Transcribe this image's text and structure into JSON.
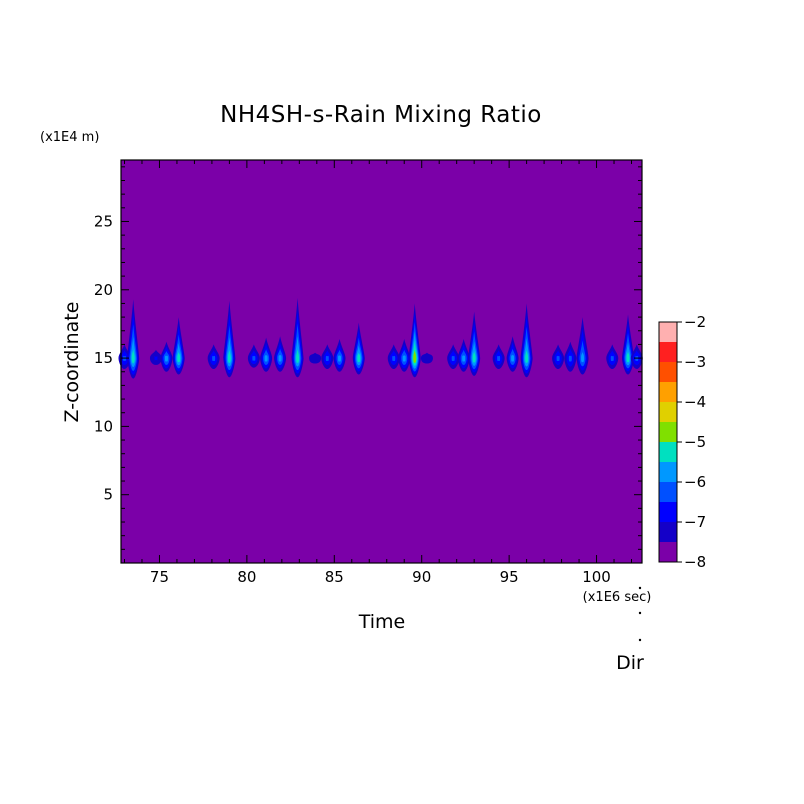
{
  "chart_data": {
    "type": "heatmap",
    "title": "NH4SH-s-Rain Mixing Ratio",
    "xlabel": "Time",
    "ylabel": "Z-coordinate",
    "x_scale_note": "(x1E6 sec)",
    "y_scale_note": "(x1E4 m)",
    "corner_label": "Dir",
    "xlim": [
      72.8,
      102.6
    ],
    "ylim": [
      0,
      29.5
    ],
    "x_ticks": [
      75,
      80,
      85,
      90,
      95,
      100
    ],
    "y_ticks": [
      5,
      10,
      15,
      20,
      25
    ],
    "background_value": -8,
    "colorbar": {
      "range": [
        -8,
        -2
      ],
      "ticks": [
        -8,
        -7,
        -6,
        -5,
        -4,
        -3,
        -2
      ],
      "levels": [
        {
          "from": -8.0,
          "to": -7.5,
          "color": "#7b00a8"
        },
        {
          "from": -7.5,
          "to": -7.0,
          "color": "#1400c8"
        },
        {
          "from": -7.0,
          "to": -6.5,
          "color": "#0000ff"
        },
        {
          "from": -6.5,
          "to": -6.0,
          "color": "#0050ff"
        },
        {
          "from": -6.0,
          "to": -5.5,
          "color": "#0098ff"
        },
        {
          "from": -5.5,
          "to": -5.0,
          "color": "#00e0c0"
        },
        {
          "from": -5.0,
          "to": -4.5,
          "color": "#80e000"
        },
        {
          "from": -4.5,
          "to": -4.0,
          "color": "#e0d000"
        },
        {
          "from": -4.0,
          "to": -3.5,
          "color": "#ffa000"
        },
        {
          "from": -3.5,
          "to": -3.0,
          "color": "#ff5000"
        },
        {
          "from": -3.0,
          "to": -2.5,
          "color": "#ff2020"
        },
        {
          "from": -2.5,
          "to": -2.0,
          "color": "#ffb0b0"
        }
      ]
    },
    "cells": [
      {
        "t": 73.0,
        "zmin": 14.2,
        "zmax": 16.0,
        "peak": -6.5
      },
      {
        "t": 73.5,
        "zmin": 13.5,
        "zmax": 19.3,
        "peak": -5.5
      },
      {
        "t": 74.8,
        "zmin": 14.5,
        "zmax": 15.6,
        "peak": -7.0
      },
      {
        "t": 75.4,
        "zmin": 14.0,
        "zmax": 16.2,
        "peak": -6.0
      },
      {
        "t": 76.1,
        "zmin": 13.8,
        "zmax": 18.0,
        "peak": -5.2
      },
      {
        "t": 78.1,
        "zmin": 14.2,
        "zmax": 16.0,
        "peak": -6.5
      },
      {
        "t": 79.0,
        "zmin": 13.6,
        "zmax": 19.2,
        "peak": -5.2
      },
      {
        "t": 80.4,
        "zmin": 14.3,
        "zmax": 16.0,
        "peak": -6.5
      },
      {
        "t": 81.1,
        "zmin": 14.0,
        "zmax": 16.5,
        "peak": -6.0
      },
      {
        "t": 81.9,
        "zmin": 14.0,
        "zmax": 16.6,
        "peak": -6.0
      },
      {
        "t": 82.9,
        "zmin": 13.6,
        "zmax": 19.4,
        "peak": -5.4
      },
      {
        "t": 83.9,
        "zmin": 14.6,
        "zmax": 15.4,
        "peak": -7.2
      },
      {
        "t": 84.6,
        "zmin": 14.2,
        "zmax": 16.0,
        "peak": -6.5
      },
      {
        "t": 85.3,
        "zmin": 14.0,
        "zmax": 16.4,
        "peak": -6.0
      },
      {
        "t": 86.4,
        "zmin": 13.8,
        "zmax": 17.6,
        "peak": -5.5
      },
      {
        "t": 88.4,
        "zmin": 14.2,
        "zmax": 16.0,
        "peak": -6.5
      },
      {
        "t": 89.0,
        "zmin": 14.0,
        "zmax": 16.4,
        "peak": -6.0
      },
      {
        "t": 89.6,
        "zmin": 13.6,
        "zmax": 19.0,
        "peak": -5.0
      },
      {
        "t": 90.3,
        "zmin": 14.6,
        "zmax": 15.4,
        "peak": -7.2
      },
      {
        "t": 91.8,
        "zmin": 14.2,
        "zmax": 16.0,
        "peak": -6.5
      },
      {
        "t": 92.4,
        "zmin": 14.0,
        "zmax": 16.4,
        "peak": -6.0
      },
      {
        "t": 93.0,
        "zmin": 13.7,
        "zmax": 18.4,
        "peak": -5.3
      },
      {
        "t": 94.4,
        "zmin": 14.2,
        "zmax": 16.0,
        "peak": -6.5
      },
      {
        "t": 95.2,
        "zmin": 14.0,
        "zmax": 16.6,
        "peak": -6.0
      },
      {
        "t": 96.0,
        "zmin": 13.6,
        "zmax": 19.0,
        "peak": -5.3
      },
      {
        "t": 97.8,
        "zmin": 14.2,
        "zmax": 16.0,
        "peak": -6.5
      },
      {
        "t": 98.5,
        "zmin": 14.0,
        "zmax": 16.2,
        "peak": -6.2
      },
      {
        "t": 99.2,
        "zmin": 13.8,
        "zmax": 18.0,
        "peak": -5.6
      },
      {
        "t": 100.9,
        "zmin": 14.2,
        "zmax": 16.0,
        "peak": -6.5
      },
      {
        "t": 101.8,
        "zmin": 13.8,
        "zmax": 18.2,
        "peak": -5.2
      },
      {
        "t": 102.3,
        "zmin": 14.2,
        "zmax": 16.0,
        "peak": -6.4
      }
    ]
  }
}
